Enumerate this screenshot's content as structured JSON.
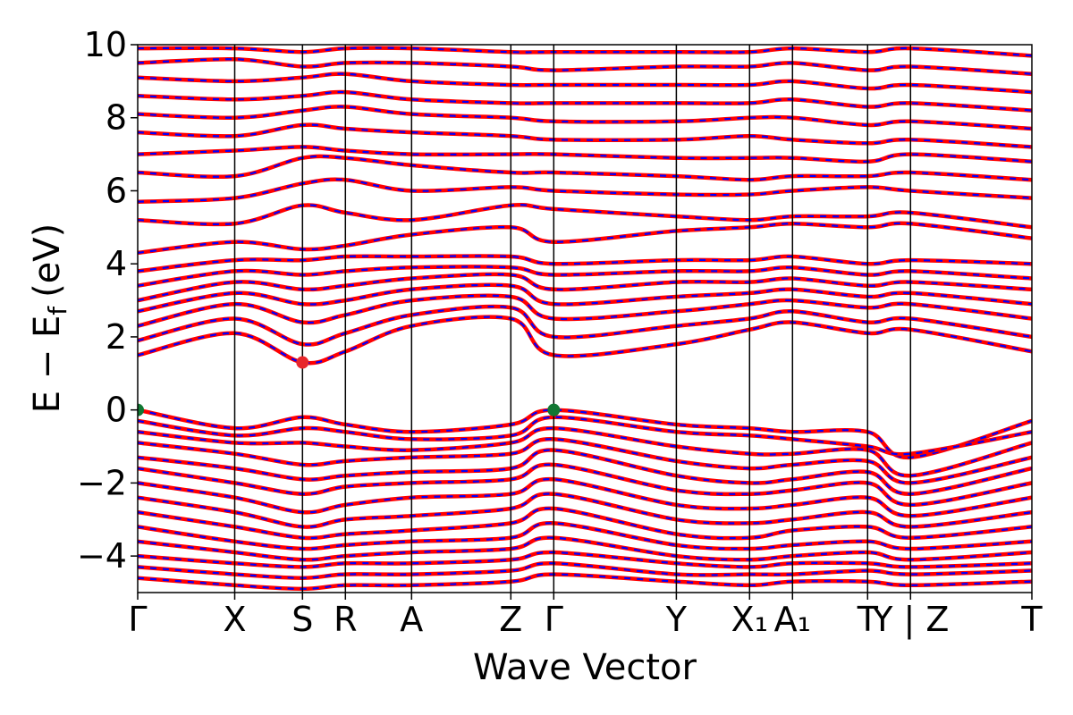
{
  "chart_data": {
    "type": "line",
    "xlabel": "Wave Vector",
    "ylabel_main": "E − E",
    "ylabel_sub": "f",
    "ylabel_unit": "(eV)",
    "ylim": [
      -5,
      10
    ],
    "xlim": [
      0,
      1
    ],
    "yticks": [
      {
        "value": 10,
        "label": "10"
      },
      {
        "value": 8,
        "label": "8"
      },
      {
        "value": 6,
        "label": "6"
      },
      {
        "value": 4,
        "label": "4"
      },
      {
        "value": 2,
        "label": "2"
      },
      {
        "value": 0,
        "label": "0"
      },
      {
        "value": -2,
        "label": "−2"
      },
      {
        "value": -4,
        "label": "−4"
      }
    ],
    "kpoints": [
      {
        "pos": 0.0,
        "label": "Γ"
      },
      {
        "pos": 0.1085,
        "label": "X"
      },
      {
        "pos": 0.1843,
        "label": "S"
      },
      {
        "pos": 0.2323,
        "label": "R"
      },
      {
        "pos": 0.3063,
        "label": "A"
      },
      {
        "pos": 0.4173,
        "label": "Z"
      },
      {
        "pos": 0.4653,
        "label": "Γ"
      },
      {
        "pos": 0.6024,
        "label": "Y"
      },
      {
        "pos": 0.6843,
        "label": "X₁"
      },
      {
        "pos": 0.7323,
        "label": "A₁"
      },
      {
        "pos": 0.8163,
        "label": "T"
      },
      {
        "pos": 0.8643,
        "label": "Y | Z"
      },
      {
        "pos": 1.0,
        "label": "T"
      }
    ],
    "vbm_markers": [
      {
        "x": 0.0,
        "y": 0.0,
        "color": "#117733"
      },
      {
        "x": 0.4653,
        "y": 0.0,
        "color": "#117733"
      }
    ],
    "cbm_markers": [
      {
        "x": 0.1843,
        "y": 1.3,
        "color": "#e8262b"
      }
    ],
    "line_colors": {
      "spin_up": "#ff0000",
      "spin_down": "#0000ff"
    },
    "bands": [
      {
        "name": "v1",
        "y": [
          0.0,
          -0.5,
          -0.2,
          -0.4,
          -0.6,
          -0.4,
          0.0,
          -0.4,
          -0.5,
          -0.6,
          -0.6,
          -1.3,
          -0.3,
          -0.5
        ]
      },
      {
        "name": "v2",
        "y": [
          -0.3,
          -0.7,
          -0.5,
          -0.6,
          -0.8,
          -0.7,
          -0.2,
          -0.6,
          -0.7,
          -0.8,
          -1.0,
          -1.2,
          -0.6,
          -0.7
        ]
      },
      {
        "name": "v3",
        "y": [
          -0.6,
          -0.9,
          -0.9,
          -1.0,
          -1.1,
          -0.9,
          -0.5,
          -1.0,
          -1.2,
          -1.2,
          -1.1,
          -1.8,
          -0.9,
          -1.0
        ]
      },
      {
        "name": "v4",
        "y": [
          -0.9,
          -1.2,
          -1.5,
          -1.4,
          -1.3,
          -1.2,
          -0.8,
          -1.4,
          -1.6,
          -1.5,
          -1.4,
          -2.0,
          -1.3,
          -1.4
        ]
      },
      {
        "name": "v5",
        "y": [
          -1.3,
          -1.6,
          -1.9,
          -1.8,
          -1.7,
          -1.6,
          -1.1,
          -1.8,
          -2.0,
          -1.9,
          -1.7,
          -2.3,
          -1.6,
          -1.8
        ]
      },
      {
        "name": "v6",
        "y": [
          -1.6,
          -2.0,
          -2.3,
          -2.1,
          -2.0,
          -1.9,
          -1.5,
          -2.2,
          -2.3,
          -2.2,
          -2.0,
          -2.6,
          -2.0,
          -2.2
        ]
      },
      {
        "name": "v7",
        "y": [
          -2.0,
          -2.4,
          -2.8,
          -2.6,
          -2.4,
          -2.3,
          -1.9,
          -2.6,
          -2.7,
          -2.6,
          -2.4,
          -2.9,
          -2.4,
          -2.6
        ]
      },
      {
        "name": "v8",
        "y": [
          -2.4,
          -2.8,
          -3.2,
          -3.0,
          -2.9,
          -2.7,
          -2.3,
          -3.0,
          -3.1,
          -3.0,
          -2.8,
          -3.2,
          -2.8,
          -3.0
        ]
      },
      {
        "name": "v9",
        "y": [
          -2.8,
          -3.2,
          -3.5,
          -3.4,
          -3.3,
          -3.1,
          -2.7,
          -3.4,
          -3.5,
          -3.3,
          -3.2,
          -3.5,
          -3.2,
          -3.4
        ]
      },
      {
        "name": "v10",
        "y": [
          -3.2,
          -3.6,
          -3.8,
          -3.7,
          -3.6,
          -3.5,
          -3.1,
          -3.7,
          -3.8,
          -3.7,
          -3.6,
          -3.8,
          -3.6,
          -3.7
        ]
      },
      {
        "name": "v11",
        "y": [
          -3.6,
          -3.9,
          -4.1,
          -4.0,
          -3.9,
          -3.8,
          -3.5,
          -4.0,
          -4.1,
          -4.0,
          -3.9,
          -4.1,
          -3.9,
          -4.0
        ]
      },
      {
        "name": "v12",
        "y": [
          -4.0,
          -4.2,
          -4.3,
          -4.2,
          -4.2,
          -4.1,
          -3.9,
          -4.2,
          -4.3,
          -4.2,
          -4.2,
          -4.3,
          -4.2,
          -4.2
        ]
      },
      {
        "name": "v13",
        "y": [
          -4.3,
          -4.5,
          -4.6,
          -4.5,
          -4.5,
          -4.4,
          -4.2,
          -4.5,
          -4.5,
          -4.5,
          -4.4,
          -4.5,
          -4.4,
          -4.5
        ]
      },
      {
        "name": "v14",
        "y": [
          -4.6,
          -4.8,
          -4.9,
          -4.8,
          -4.8,
          -4.7,
          -4.5,
          -4.7,
          -4.8,
          -4.7,
          -4.7,
          -4.8,
          -4.7,
          -4.8
        ]
      },
      {
        "name": "c1",
        "y": [
          1.5,
          2.1,
          1.3,
          1.6,
          2.3,
          2.5,
          1.5,
          1.8,
          2.2,
          2.4,
          2.1,
          2.2,
          1.6,
          2.0
        ]
      },
      {
        "name": "c2",
        "y": [
          1.9,
          2.5,
          1.8,
          2.1,
          2.6,
          2.8,
          2.0,
          2.3,
          2.5,
          2.7,
          2.4,
          2.5,
          2.0,
          2.4
        ]
      },
      {
        "name": "c3",
        "y": [
          2.3,
          2.9,
          2.4,
          2.6,
          3.0,
          3.1,
          2.5,
          2.7,
          2.9,
          3.0,
          2.8,
          2.9,
          2.5,
          2.7
        ]
      },
      {
        "name": "c4",
        "y": [
          2.7,
          3.2,
          2.9,
          3.0,
          3.3,
          3.4,
          2.9,
          3.1,
          3.2,
          3.3,
          3.1,
          3.2,
          2.9,
          3.1
        ]
      },
      {
        "name": "c5",
        "y": [
          3.0,
          3.5,
          3.3,
          3.4,
          3.6,
          3.7,
          3.3,
          3.5,
          3.5,
          3.6,
          3.4,
          3.5,
          3.3,
          3.4
        ]
      },
      {
        "name": "c6",
        "y": [
          3.4,
          3.8,
          3.7,
          3.8,
          3.9,
          3.9,
          3.7,
          3.8,
          3.8,
          3.9,
          3.7,
          3.8,
          3.6,
          3.8
        ]
      },
      {
        "name": "c7",
        "y": [
          3.8,
          4.1,
          4.1,
          4.2,
          4.2,
          4.2,
          4.0,
          4.1,
          4.1,
          4.2,
          4.0,
          4.1,
          4.0,
          4.1
        ]
      },
      {
        "name": "c8",
        "y": [
          4.3,
          4.6,
          4.4,
          4.5,
          4.8,
          5.0,
          4.6,
          4.9,
          5.0,
          5.1,
          5.0,
          5.1,
          4.7,
          5.0
        ]
      },
      {
        "name": "c9",
        "y": [
          5.2,
          5.1,
          5.6,
          5.4,
          5.2,
          5.6,
          5.5,
          5.3,
          5.2,
          5.3,
          5.3,
          5.4,
          5.0,
          5.4
        ]
      },
      {
        "name": "c10",
        "y": [
          5.7,
          5.8,
          6.2,
          6.3,
          6.0,
          6.1,
          6.0,
          5.9,
          5.9,
          6.0,
          6.1,
          6.0,
          5.8,
          6.0
        ]
      },
      {
        "name": "c11",
        "y": [
          6.5,
          6.4,
          6.9,
          6.9,
          6.7,
          6.5,
          6.5,
          6.4,
          6.3,
          6.4,
          6.4,
          6.5,
          6.3,
          6.5
        ]
      },
      {
        "name": "c12",
        "y": [
          7.0,
          7.1,
          7.2,
          7.1,
          7.0,
          7.0,
          7.0,
          6.9,
          6.9,
          6.9,
          6.8,
          7.0,
          6.8,
          6.9
        ]
      },
      {
        "name": "c13",
        "y": [
          7.6,
          7.5,
          7.8,
          7.7,
          7.6,
          7.5,
          7.4,
          7.4,
          7.5,
          7.4,
          7.3,
          7.4,
          7.2,
          7.4
        ]
      },
      {
        "name": "c14",
        "y": [
          8.1,
          8.0,
          8.2,
          8.3,
          8.1,
          8.0,
          7.9,
          7.9,
          8.0,
          8.0,
          7.8,
          7.9,
          7.7,
          7.9
        ]
      },
      {
        "name": "c15",
        "y": [
          8.6,
          8.5,
          8.6,
          8.7,
          8.5,
          8.4,
          8.4,
          8.4,
          8.4,
          8.5,
          8.3,
          8.4,
          8.2,
          8.4
        ]
      },
      {
        "name": "c16",
        "y": [
          9.1,
          9.0,
          9.1,
          9.2,
          9.0,
          8.9,
          8.9,
          8.9,
          8.9,
          9.0,
          8.8,
          8.9,
          8.7,
          8.9
        ]
      },
      {
        "name": "c17",
        "y": [
          9.5,
          9.6,
          9.4,
          9.5,
          9.5,
          9.4,
          9.3,
          9.4,
          9.4,
          9.5,
          9.3,
          9.4,
          9.2,
          9.4
        ]
      },
      {
        "name": "c18",
        "y": [
          9.9,
          9.9,
          9.8,
          9.9,
          9.9,
          9.8,
          9.8,
          9.8,
          9.8,
          9.9,
          9.8,
          9.9,
          9.7,
          9.8
        ]
      }
    ]
  }
}
